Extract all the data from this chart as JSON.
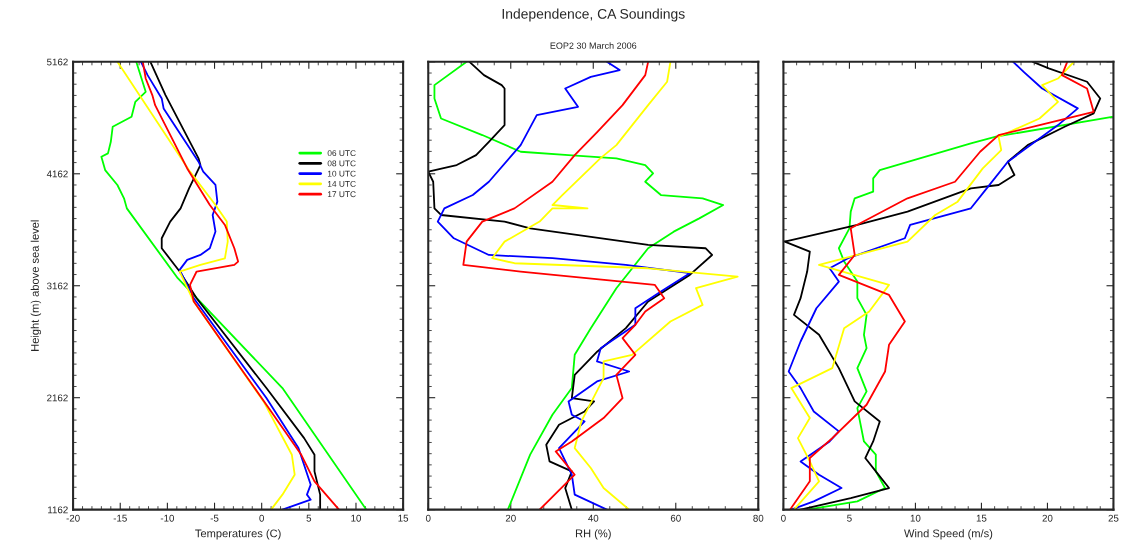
{
  "chart_data": [
    {
      "type": "line",
      "ylabel": "Height (m) above sea level",
      "xlabel": "Temperatures (C)",
      "xlim": [
        -20,
        15
      ],
      "xticks": [
        -20,
        -15,
        -10,
        -5,
        0,
        5,
        10,
        15
      ],
      "ylim": [
        1162,
        5162
      ],
      "yticks": [
        1162,
        2162,
        3162,
        4162,
        5162
      ],
      "legend": "top right",
      "grid": false,
      "series": [
        {
          "name": "06 UTC",
          "color": "#00ff00",
          "x": [
            -13.3,
            -12.3,
            -13.4,
            -13.8,
            -15.8,
            -16.0,
            -16.3,
            -17.0,
            -16.6,
            -15.3,
            -14.6,
            -14.3,
            -8.9,
            2.2,
            11.1
          ],
          "values": [
            5162,
            4894,
            4805,
            4671,
            4582,
            4448,
            4344,
            4314,
            4195,
            4062,
            3943,
            3853,
            3229,
            2248,
            1162
          ]
        },
        {
          "name": "08 UTC",
          "color": "#000000",
          "x": [
            -11.8,
            -10.2,
            -6.7,
            -6.5,
            -7.7,
            -8.6,
            -9.7,
            -10.6,
            -10.6,
            -8.7,
            -6.9,
            0.5,
            4.5,
            5.6,
            5.6,
            6.2,
            6.2
          ],
          "values": [
            5162,
            4865,
            4300,
            4240,
            4032,
            3853,
            3735,
            3586,
            3497,
            3289,
            3050,
            2248,
            1801,
            1652,
            1504,
            1296,
            1162
          ]
        },
        {
          "name": "10 UTC",
          "color": "#0000ff",
          "x": [
            -12.8,
            -12.1,
            -10.6,
            -10.4,
            -6.7,
            -6.2,
            -4.9,
            -4.7,
            -5.2,
            -4.9,
            -5.5,
            -6.5,
            -7.9,
            -8.7,
            -7.2,
            0.5,
            3.9,
            5.2,
            4.8,
            5.2,
            2.2
          ],
          "values": [
            5162,
            5043,
            4835,
            4746,
            4270,
            4181,
            4062,
            3913,
            3794,
            3646,
            3497,
            3437,
            3393,
            3304,
            3050,
            2159,
            1712,
            1385,
            1296,
            1251,
            1162
          ]
        },
        {
          "name": "14 UTC",
          "color": "#ffff00",
          "x": [
            -15.3,
            -7.6,
            -4.9,
            -3.7,
            -3.6,
            -3.9,
            -6.5,
            -8.7,
            -7.2,
            0.2,
            3.2,
            3.5,
            2.2,
            1.0
          ],
          "values": [
            5162,
            4181,
            3883,
            3735,
            3556,
            3407,
            3348,
            3289,
            3021,
            2129,
            1652,
            1474,
            1296,
            1162
          ]
        },
        {
          "name": "17 UTC",
          "color": "#ff0000",
          "x": [
            -12.6,
            -12.3,
            -11.6,
            -11.3,
            -7.9,
            -5.5,
            -3.9,
            -2.9,
            -2.5,
            -2.9,
            -6.9,
            -7.6,
            -7.2,
            0.5,
            4.2,
            5.6,
            8.2
          ],
          "values": [
            5162,
            5013,
            4865,
            4775,
            4210,
            3883,
            3705,
            3497,
            3378,
            3348,
            3289,
            3170,
            3021,
            2099,
            1652,
            1415,
            1162
          ]
        }
      ]
    },
    {
      "type": "line",
      "title": "Independence, CA Soundings",
      "subtitle": "EOP2 30 March 2006",
      "xlabel": "RH (%)",
      "xlim": [
        0,
        80
      ],
      "xticks": [
        0,
        20,
        40,
        60,
        80
      ],
      "ylim": [
        1162,
        5162
      ],
      "tick_labels": "x",
      "grid": false,
      "series": [
        {
          "color": "#00ff00",
          "x": [
            9.3,
            1.5,
            1.5,
            3.1,
            13.1,
            22.4,
            34.0,
            45.6,
            52.6,
            54.5,
            52.6,
            56.4,
            66.5,
            71.5,
            65.7,
            59.5,
            53.3,
            45.6,
            39.4,
            35.5,
            34.8,
            30.1,
            24.7,
            19.3
          ],
          "values": [
            5162,
            4954,
            4835,
            4656,
            4508,
            4359,
            4329,
            4300,
            4240,
            4166,
            4091,
            3972,
            3943,
            3883,
            3764,
            3645,
            3497,
            3140,
            2783,
            2545,
            2248,
            2010,
            1653,
            1162
          ]
        },
        {
          "color": "#000000",
          "x": [
            10.0,
            13.5,
            17.8,
            18.5,
            18.5,
            14.7,
            11.6,
            6.9,
            0,
            1.2,
            1.5,
            3.1,
            18.5,
            24.7,
            53.3,
            67.2,
            68.8,
            63.4,
            53.3,
            47.9,
            41.0,
            35.5,
            34.8,
            40.2,
            37.9,
            31.7,
            28.6,
            29.4,
            34.8,
            33.2,
            34.8
          ],
          "values": [
            5162,
            5043,
            4954,
            4924,
            4597,
            4448,
            4329,
            4240,
            4181,
            4091,
            3853,
            3794,
            3735,
            3675,
            3527,
            3497,
            3437,
            3259,
            3021,
            2783,
            2575,
            2366,
            2158,
            2129,
            2039,
            1920,
            1742,
            1593,
            1504,
            1355,
            1162
          ]
        },
        {
          "color": "#0000ff",
          "x": [
            43.3,
            46.4,
            39.4,
            33.2,
            36.3,
            26.3,
            22.4,
            14.7,
            10.8,
            3.9,
            2.3,
            6.2,
            14.7,
            30.1,
            47.9,
            63.4,
            56.4,
            50.2,
            50.2,
            41.8,
            40.9,
            48.7,
            40.9,
            34.0,
            34.8,
            37.9,
            31.7,
            34.8,
            35.5,
            43.3
          ],
          "values": [
            5162,
            5088,
            5028,
            4924,
            4760,
            4686,
            4418,
            4091,
            3972,
            3853,
            3735,
            3586,
            3437,
            3408,
            3348,
            3274,
            3110,
            2961,
            2813,
            2604,
            2486,
            2396,
            2307,
            2129,
            2010,
            1950,
            1712,
            1474,
            1296,
            1162
          ]
        },
        {
          "color": "#ffff00",
          "x": [
            58.7,
            57.9,
            53.3,
            45.6,
            41.7,
            32.5,
            30.1,
            38.6,
            30.1,
            27.0,
            18.5,
            15.5,
            20.9,
            53.3,
            75.0,
            64.9,
            66.5,
            58.7,
            49.4,
            42.5,
            42.5,
            37.1,
            35.5,
            39.4,
            42.5,
            48.7
          ],
          "values": [
            5162,
            4984,
            4775,
            4418,
            4300,
            3972,
            3883,
            3853,
            3853,
            3735,
            3556,
            3408,
            3363,
            3318,
            3244,
            3140,
            2991,
            2843,
            2545,
            2486,
            2337,
            1950,
            1712,
            1534,
            1355,
            1162
          ]
        },
        {
          "color": "#ff0000",
          "x": [
            53.3,
            52.6,
            47.1,
            41.0,
            35.5,
            30.1,
            20.9,
            13.1,
            9.3,
            8.5,
            22.4,
            54.9,
            57.2,
            52.6,
            50.2,
            47.1,
            50.2,
            45.6,
            47.1,
            42.5,
            34.8,
            30.9,
            35.5,
            27.0
          ],
          "values": [
            5162,
            5043,
            4775,
            4537,
            4329,
            4091,
            3853,
            3735,
            3556,
            3348,
            3289,
            3170,
            3051,
            2932,
            2813,
            2694,
            2545,
            2366,
            2158,
            1980,
            1771,
            1682,
            1474,
            1162
          ]
        }
      ]
    },
    {
      "type": "line",
      "xlabel": "Wind Speed (m/s)",
      "xlim": [
        0,
        25
      ],
      "xticks": [
        0,
        5,
        10,
        15,
        20,
        25
      ],
      "ylim": [
        1162,
        5162
      ],
      "tick_labels": "x",
      "grid": false,
      "series": [
        {
          "color": "#00ff00",
          "x": [
            24.9,
            16.1,
            14.2,
            7.3,
            6.8,
            6.8,
            5.4,
            5.1,
            5.0,
            4.2,
            4.6,
            5.6,
            5.6,
            6.3,
            6.1,
            6.3,
            5.6,
            6.3,
            5.6,
            6.1,
            7.0,
            7.0,
            7.7,
            5.6,
            1.8
          ],
          "values": [
            4671,
            4493,
            4433,
            4195,
            4121,
            4002,
            3943,
            3824,
            3675,
            3497,
            3378,
            3199,
            3051,
            2902,
            2724,
            2605,
            2426,
            2218,
            2069,
            1771,
            1653,
            1504,
            1355,
            1236,
            1162
          ]
        },
        {
          "color": "#000000",
          "x": [
            18.9,
            20.1,
            23.0,
            24.0,
            23.5,
            21.3,
            18.5,
            17.0,
            17.5,
            16.3,
            14.2,
            9.4,
            5.6,
            0.1,
            2.0,
            1.8,
            1.3,
            0.8,
            2.7,
            4.2,
            5.4,
            7.3,
            6.8,
            6.2,
            7.0,
            8.0,
            5.1,
            1.3
          ],
          "values": [
            5162,
            5103,
            4984,
            4835,
            4701,
            4582,
            4418,
            4270,
            4151,
            4062,
            4032,
            3824,
            3705,
            3556,
            3467,
            3289,
            3051,
            2902,
            2724,
            2426,
            2129,
            1950,
            1771,
            1623,
            1504,
            1355,
            1266,
            1162
          ]
        },
        {
          "color": "#0000ff",
          "x": [
            17.4,
            18.2,
            19.6,
            22.3,
            20.8,
            17.0,
            15.4,
            14.2,
            9.6,
            9.2,
            4.9,
            3.5,
            4.2,
            2.5,
            1.3,
            0.4,
            1.3,
            2.3,
            4.2,
            3.5,
            1.3,
            2.7,
            4.4,
            2.3,
            0.6
          ],
          "values": [
            5162,
            5073,
            4924,
            4746,
            4597,
            4270,
            4032,
            3854,
            3705,
            3586,
            3408,
            3318,
            3199,
            2961,
            2664,
            2396,
            2248,
            2039,
            1861,
            1771,
            1593,
            1474,
            1355,
            1236,
            1162
          ]
        },
        {
          "color": "#ffff00",
          "x": [
            22.0,
            20.8,
            19.6,
            20.8,
            19.4,
            16.3,
            16.5,
            15.1,
            13.2,
            11.5,
            9.4,
            2.7,
            8.0,
            6.5,
            4.6,
            3.7,
            0.6,
            2.0,
            1.1,
            2.0,
            2.7,
            0.8
          ],
          "values": [
            5162,
            5013,
            4954,
            4805,
            4656,
            4493,
            4374,
            4210,
            3913,
            3794,
            3556,
            3348,
            3170,
            2932,
            2783,
            2426,
            2248,
            1980,
            1801,
            1593,
            1415,
            1162
          ]
        },
        {
          "color": "#ff0000",
          "x": [
            21.5,
            21.1,
            23.0,
            23.5,
            19.4,
            16.3,
            14.9,
            13.0,
            9.4,
            5.1,
            5.4,
            4.2,
            8.0,
            9.2,
            8.0,
            7.7,
            6.3,
            3.7,
            2.0,
            2.0,
            0.5
          ],
          "values": [
            5162,
            5043,
            4924,
            4716,
            4597,
            4508,
            4359,
            4091,
            3943,
            3675,
            3437,
            3259,
            3080,
            2843,
            2634,
            2396,
            2099,
            1801,
            1623,
            1415,
            1162
          ]
        }
      ]
    }
  ]
}
